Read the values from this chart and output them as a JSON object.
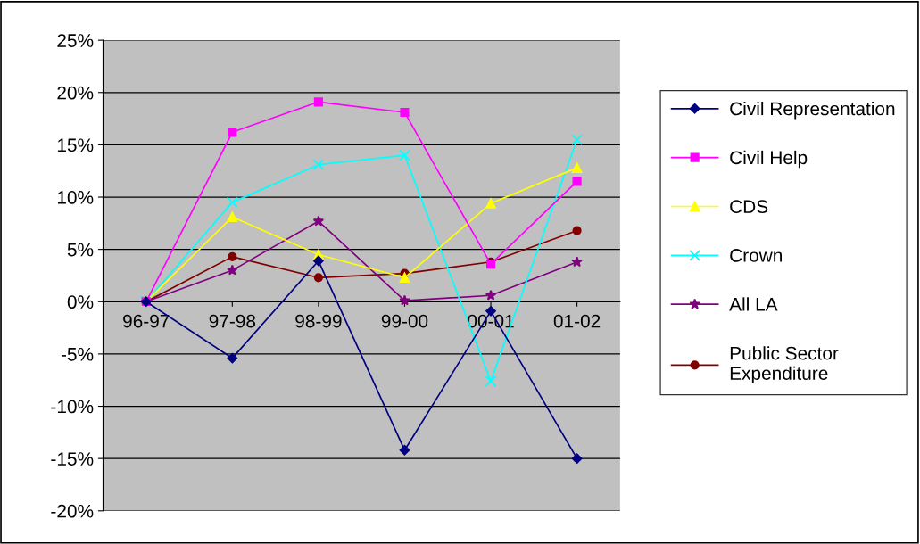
{
  "chart_data": {
    "type": "line",
    "categories": [
      "96-97",
      "97-98",
      "98-99",
      "99-00",
      "00-01",
      "01-02"
    ],
    "series": [
      {
        "name": "Civil Representation",
        "color": "#000080",
        "marker": "diamond",
        "values": [
          0,
          -5.4,
          3.9,
          -14.2,
          -0.9,
          -15.0
        ]
      },
      {
        "name": "Civil Help",
        "color": "#ff00ff",
        "marker": "square",
        "values": [
          0,
          16.2,
          19.1,
          18.1,
          3.6,
          11.5
        ]
      },
      {
        "name": "CDS",
        "color": "#ffff00",
        "marker": "triangle",
        "values": [
          0,
          8.1,
          4.5,
          2.3,
          9.4,
          12.8
        ]
      },
      {
        "name": "Crown",
        "color": "#00ffff",
        "marker": "cross",
        "values": [
          0,
          9.5,
          13.1,
          14.0,
          -7.6,
          15.5
        ]
      },
      {
        "name": "All LA",
        "color": "#800080",
        "marker": "star",
        "values": [
          0,
          3.0,
          7.7,
          0.1,
          0.6,
          3.8
        ]
      },
      {
        "name": "Public Sector Expenditure",
        "color": "#800000",
        "marker": "circle",
        "values": [
          0,
          4.3,
          2.3,
          2.7,
          3.8,
          6.8
        ]
      }
    ],
    "ylim": [
      -20,
      25
    ],
    "yticks": [
      {
        "value": -20,
        "label": "-20%"
      },
      {
        "value": -15,
        "label": "-15%"
      },
      {
        "value": -10,
        "label": "-10%"
      },
      {
        "value": -5,
        "label": "-5%"
      },
      {
        "value": 0,
        "label": "0%"
      },
      {
        "value": 5,
        "label": "5%"
      },
      {
        "value": 10,
        "label": "10%"
      },
      {
        "value": 15,
        "label": "15%"
      },
      {
        "value": 20,
        "label": "20%"
      },
      {
        "value": 25,
        "label": "25%"
      }
    ],
    "grid": "y",
    "legend": "right",
    "line_style": "solid"
  }
}
